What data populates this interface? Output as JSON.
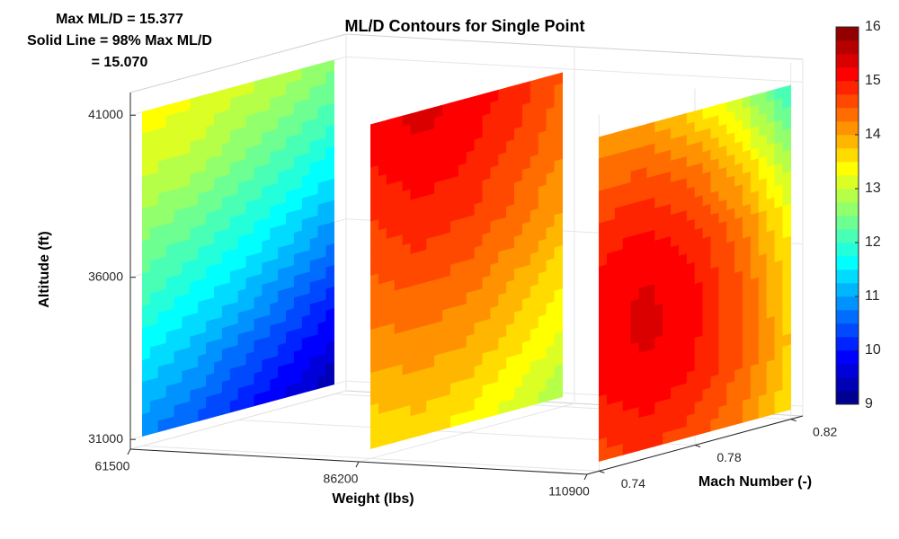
{
  "chart_data": {
    "type": "contour-slices",
    "title": "ML/D Contours for Single Point",
    "annotations": [
      "Max ML/D = 15.377",
      "Solid Line = 98% Max ML/D",
      "= 15.070"
    ],
    "xlabel": "Weight (lbs)",
    "ylabel": "Mach Number (-)",
    "zlabel": "Altitude (ft)",
    "xlim": [
      61500,
      110900
    ],
    "xticks": [
      61500,
      86200,
      110900
    ],
    "ylim": [
      0.735,
      0.825
    ],
    "yticks": [
      0.74,
      0.78,
      0.82
    ],
    "zlim": [
      30700,
      41700
    ],
    "zticks": [
      31000,
      36000,
      41000
    ],
    "grid": true,
    "colormap": "jet",
    "clim": [
      9,
      16
    ],
    "cticks": [
      9,
      10,
      11,
      12,
      13,
      14,
      15,
      16
    ],
    "mach": [
      0.74,
      0.76,
      0.78,
      0.8,
      0.82
    ],
    "altitude": [
      41000,
      39000,
      37000,
      35000,
      33000,
      31000
    ],
    "slices": [
      {
        "weight": 61500,
        "values": [
          [
            13.4,
            13.3,
            13.1,
            12.9,
            12.6
          ],
          [
            13.0,
            12.9,
            12.6,
            12.3,
            12.0
          ],
          [
            12.5,
            12.3,
            12.0,
            11.7,
            11.3
          ],
          [
            12.0,
            11.7,
            11.4,
            11.0,
            10.6
          ],
          [
            11.4,
            11.1,
            10.7,
            10.3,
            9.9
          ],
          [
            10.8,
            10.5,
            10.1,
            9.7,
            9.3
          ]
        ]
      },
      {
        "weight": 86200,
        "values": [
          [
            15.1,
            15.35,
            15.2,
            14.9,
            14.5
          ],
          [
            14.9,
            15.1,
            15.0,
            14.7,
            14.3
          ],
          [
            14.6,
            14.8,
            14.7,
            14.4,
            14.0
          ],
          [
            14.3,
            14.4,
            14.3,
            14.0,
            13.6
          ],
          [
            13.9,
            14.0,
            13.9,
            13.6,
            13.2
          ],
          [
            13.5,
            13.6,
            13.4,
            13.1,
            12.8
          ]
        ]
      },
      {
        "weight": 110900,
        "values": [
          [
            14.0,
            14.0,
            13.6,
            12.9,
            11.9
          ],
          [
            14.6,
            14.7,
            14.4,
            13.7,
            12.7
          ],
          [
            15.0,
            15.2,
            14.9,
            14.3,
            13.3
          ],
          [
            15.1,
            15.35,
            15.1,
            14.5,
            13.6
          ],
          [
            15.0,
            15.2,
            15.0,
            14.5,
            13.7
          ],
          [
            14.6,
            14.8,
            14.6,
            14.2,
            13.5
          ]
        ]
      }
    ]
  }
}
